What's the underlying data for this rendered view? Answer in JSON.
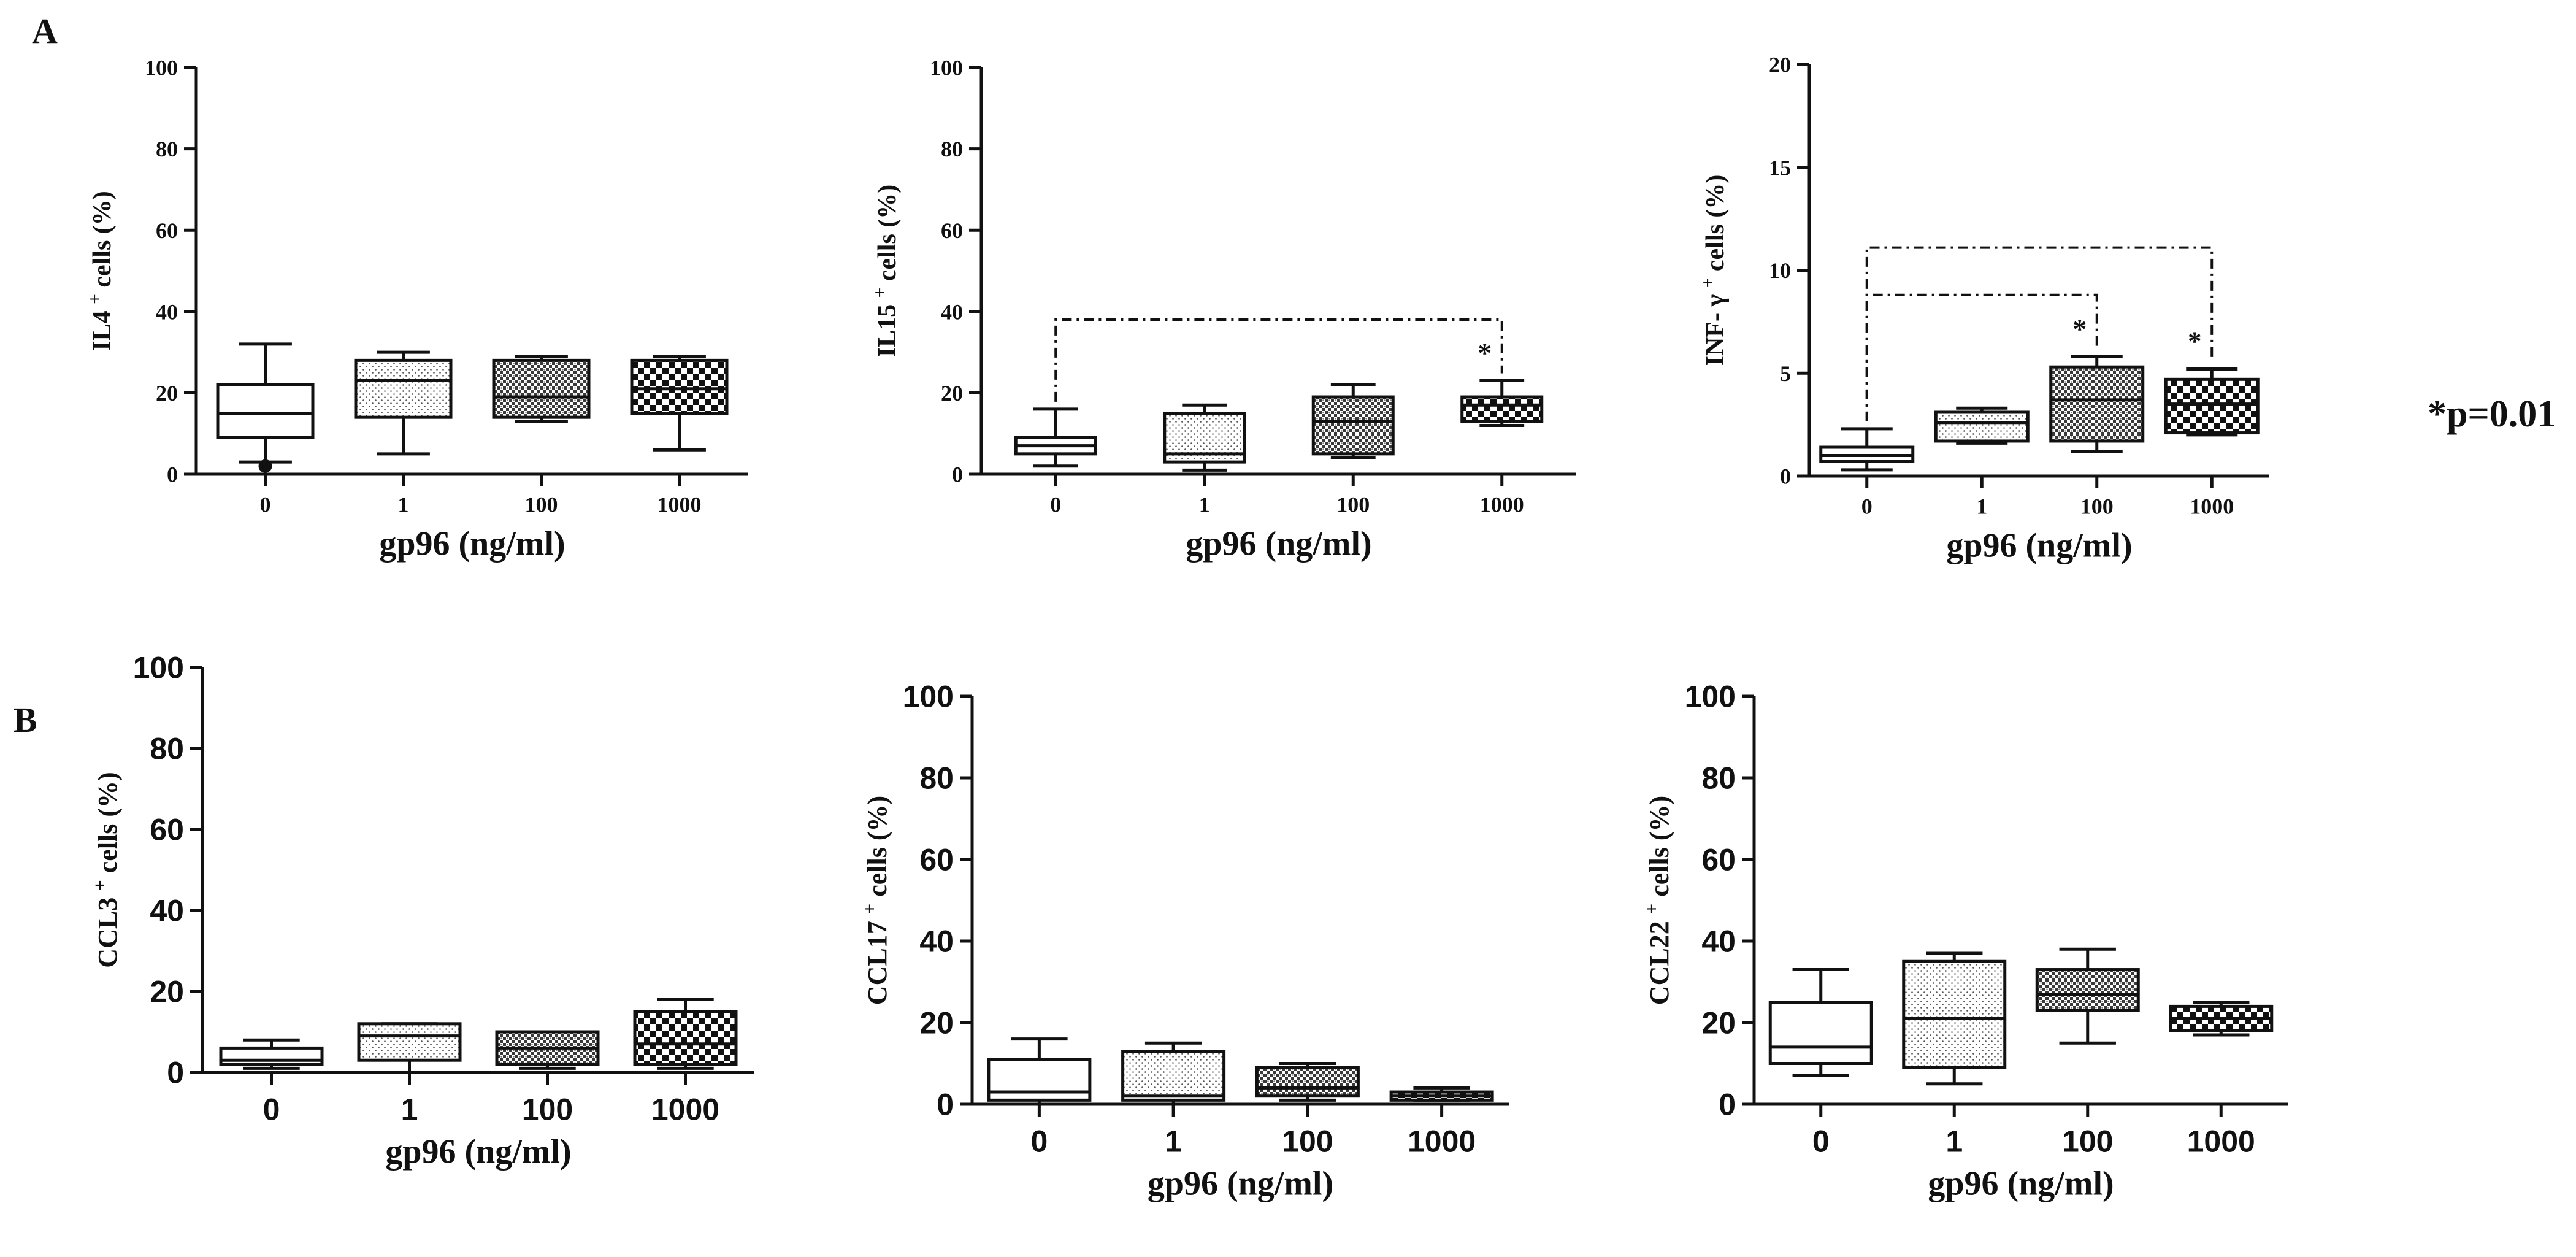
{
  "panel_labels": {
    "a": "A",
    "b": "B"
  },
  "significance_note": "*p=0.01",
  "chart_data": [
    {
      "id": "il4",
      "type": "boxplot",
      "title": "",
      "ylabel": "IL4",
      "ylabel_sup": "+",
      "ylabel_rest": " cells (%)",
      "xlabel": "gp96 (ng/ml)",
      "ylim": [
        0,
        100
      ],
      "yticks": [
        0,
        20,
        40,
        60,
        80,
        100
      ],
      "categories": [
        "0",
        "1",
        "100",
        "1000"
      ],
      "boxes": [
        {
          "min": 3,
          "q1": 9,
          "median": 15,
          "q3": 22,
          "max": 32,
          "pattern": "white",
          "outliers": [
            2
          ]
        },
        {
          "min": 5,
          "q1": 14,
          "median": 23,
          "q3": 28,
          "max": 30,
          "pattern": "dots",
          "outliers": []
        },
        {
          "min": 13,
          "q1": 14,
          "median": 19,
          "q3": 28,
          "max": 29,
          "pattern": "dense",
          "outliers": []
        },
        {
          "min": 6,
          "q1": 15,
          "median": 21,
          "q3": 28,
          "max": 29,
          "pattern": "checks",
          "outliers": []
        }
      ],
      "significance": []
    },
    {
      "id": "il15",
      "type": "boxplot",
      "title": "",
      "ylabel": "IL15",
      "ylabel_sup": "+",
      "ylabel_rest": " cells (%)",
      "xlabel": "gp96 (ng/ml)",
      "ylim": [
        0,
        100
      ],
      "yticks": [
        0,
        20,
        40,
        60,
        80,
        100
      ],
      "categories": [
        "0",
        "1",
        "100",
        "1000"
      ],
      "boxes": [
        {
          "min": 2,
          "q1": 5,
          "median": 7,
          "q3": 9,
          "max": 16,
          "pattern": "white",
          "outliers": []
        },
        {
          "min": 1,
          "q1": 3,
          "median": 5,
          "q3": 15,
          "max": 17,
          "pattern": "dots",
          "outliers": []
        },
        {
          "min": 4,
          "q1": 5,
          "median": 13,
          "q3": 19,
          "max": 22,
          "pattern": "dense",
          "outliers": []
        },
        {
          "min": 12,
          "q1": 13,
          "median": 17,
          "q3": 19,
          "max": 23,
          "pattern": "checks",
          "outliers": []
        }
      ],
      "significance": [
        {
          "from": 0,
          "to": 3,
          "y": 38,
          "star": "*"
        }
      ]
    },
    {
      "id": "infg",
      "type": "boxplot",
      "title": "",
      "ylabel": "INF-  γ",
      "ylabel_sup": "+",
      "ylabel_rest": " cells (%)",
      "xlabel": "gp96 (ng/ml)",
      "ylim": [
        0,
        20
      ],
      "yticks": [
        0,
        5,
        10,
        15,
        20
      ],
      "categories": [
        "0",
        "1",
        "100",
        "1000"
      ],
      "boxes": [
        {
          "min": 0.3,
          "q1": 0.7,
          "median": 1.0,
          "q3": 1.4,
          "max": 2.3,
          "pattern": "white",
          "outliers": []
        },
        {
          "min": 1.6,
          "q1": 1.7,
          "median": 2.6,
          "q3": 3.1,
          "max": 3.3,
          "pattern": "dots",
          "outliers": []
        },
        {
          "min": 1.2,
          "q1": 1.7,
          "median": 3.7,
          "q3": 5.3,
          "max": 5.8,
          "pattern": "dense",
          "outliers": []
        },
        {
          "min": 2.0,
          "q1": 2.1,
          "median": 3.5,
          "q3": 4.7,
          "max": 5.2,
          "pattern": "checks",
          "outliers": []
        }
      ],
      "significance": [
        {
          "from": 0,
          "to": 2,
          "y": 8.8,
          "star": "*"
        },
        {
          "from": 0,
          "to": 3,
          "y": 11.1,
          "star": "*"
        }
      ]
    },
    {
      "id": "ccl3",
      "type": "boxplot",
      "title": "",
      "ylabel": "CCL3",
      "ylabel_sup": "+",
      "ylabel_rest": " cells (%)",
      "xlabel": "gp96 (ng/ml)",
      "ylim": [
        0,
        100
      ],
      "yticks": [
        0,
        20,
        40,
        60,
        80,
        100
      ],
      "categories": [
        "0",
        "1",
        "100",
        "1000"
      ],
      "boxes": [
        {
          "min": 1,
          "q1": 2,
          "median": 3,
          "q3": 6,
          "max": 8,
          "pattern": "white",
          "outliers": []
        },
        {
          "min": 0,
          "q1": 3,
          "median": 9,
          "q3": 12,
          "max": 12,
          "pattern": "dots",
          "outliers": []
        },
        {
          "min": 1,
          "q1": 2,
          "median": 6,
          "q3": 10,
          "max": 10,
          "pattern": "dense",
          "outliers": []
        },
        {
          "min": 1,
          "q1": 2,
          "median": 7,
          "q3": 15,
          "max": 18,
          "pattern": "checks",
          "outliers": []
        }
      ],
      "significance": []
    },
    {
      "id": "ccl17",
      "type": "boxplot",
      "title": "",
      "ylabel": "CCL17",
      "ylabel_sup": "+",
      "ylabel_rest": " cells (%)",
      "xlabel": "gp96 (ng/ml)",
      "ylim": [
        0,
        100
      ],
      "yticks": [
        0,
        20,
        40,
        60,
        80,
        100
      ],
      "categories": [
        "0",
        "1",
        "100",
        "1000"
      ],
      "boxes": [
        {
          "min": 0,
          "q1": 1,
          "median": 3,
          "q3": 11,
          "max": 16,
          "pattern": "white",
          "outliers": []
        },
        {
          "min": 0,
          "q1": 1,
          "median": 2,
          "q3": 13,
          "max": 15,
          "pattern": "dots",
          "outliers": []
        },
        {
          "min": 1,
          "q1": 2,
          "median": 4,
          "q3": 9,
          "max": 10,
          "pattern": "dense",
          "outliers": []
        },
        {
          "min": 1,
          "q1": 1,
          "median": 2,
          "q3": 3,
          "max": 4,
          "pattern": "checks",
          "outliers": []
        }
      ],
      "significance": []
    },
    {
      "id": "ccl22",
      "type": "boxplot",
      "title": "",
      "ylabel": "CCL22",
      "ylabel_sup": "+",
      "ylabel_rest": " cells (%)",
      "xlabel": "gp96 (ng/ml)",
      "ylim": [
        0,
        100
      ],
      "yticks": [
        0,
        20,
        40,
        60,
        80,
        100
      ],
      "categories": [
        "0",
        "1",
        "100",
        "1000"
      ],
      "boxes": [
        {
          "min": 7,
          "q1": 10,
          "median": 14,
          "q3": 25,
          "max": 33,
          "pattern": "white",
          "outliers": []
        },
        {
          "min": 5,
          "q1": 9,
          "median": 21,
          "q3": 35,
          "max": 37,
          "pattern": "dots",
          "outliers": []
        },
        {
          "min": 15,
          "q1": 23,
          "median": 27,
          "q3": 33,
          "max": 38,
          "pattern": "dense",
          "outliers": []
        },
        {
          "min": 17,
          "q1": 18,
          "median": 21,
          "q3": 24,
          "max": 25,
          "pattern": "checks",
          "outliers": []
        }
      ],
      "significance": []
    }
  ]
}
